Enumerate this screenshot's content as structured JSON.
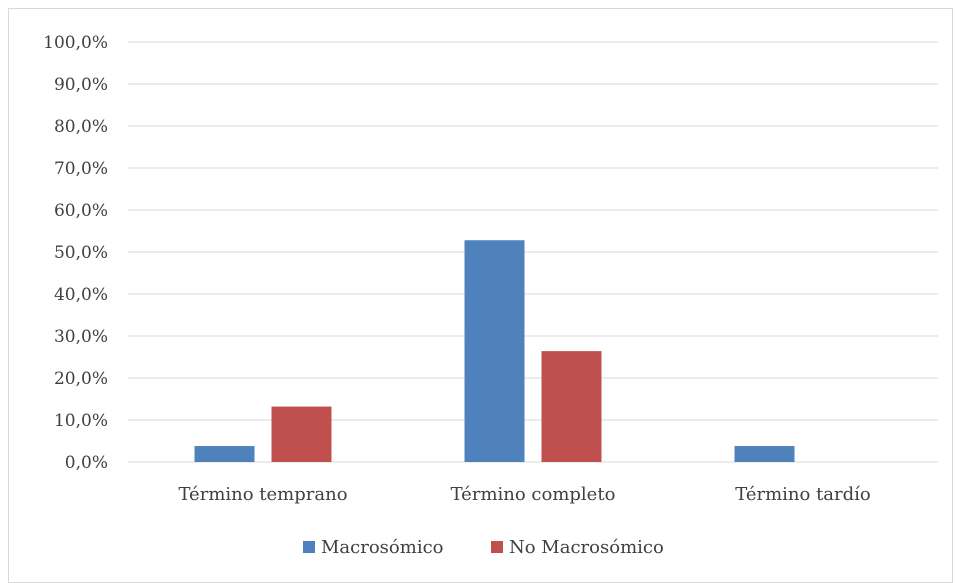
{
  "chart_data": {
    "type": "bar",
    "categories": [
      "Término temprano",
      "Término completo",
      "Término tardío"
    ],
    "series": [
      {
        "name": "Macrosómico",
        "values": [
          3.8,
          52.8,
          3.8
        ],
        "color": "#4F81BD"
      },
      {
        "name": "No Macrosómico",
        "values": [
          13.2,
          26.4,
          0.0
        ],
        "color": "#C0504D"
      }
    ],
    "ylim": [
      0,
      100
    ],
    "yticks": [
      "0,0%",
      "10,0%",
      "20,0%",
      "30,0%",
      "40,0%",
      "50,0%",
      "60,0%",
      "70,0%",
      "80,0%",
      "90,0%",
      "100,0%"
    ],
    "grid": true,
    "legend_position": "bottom"
  }
}
